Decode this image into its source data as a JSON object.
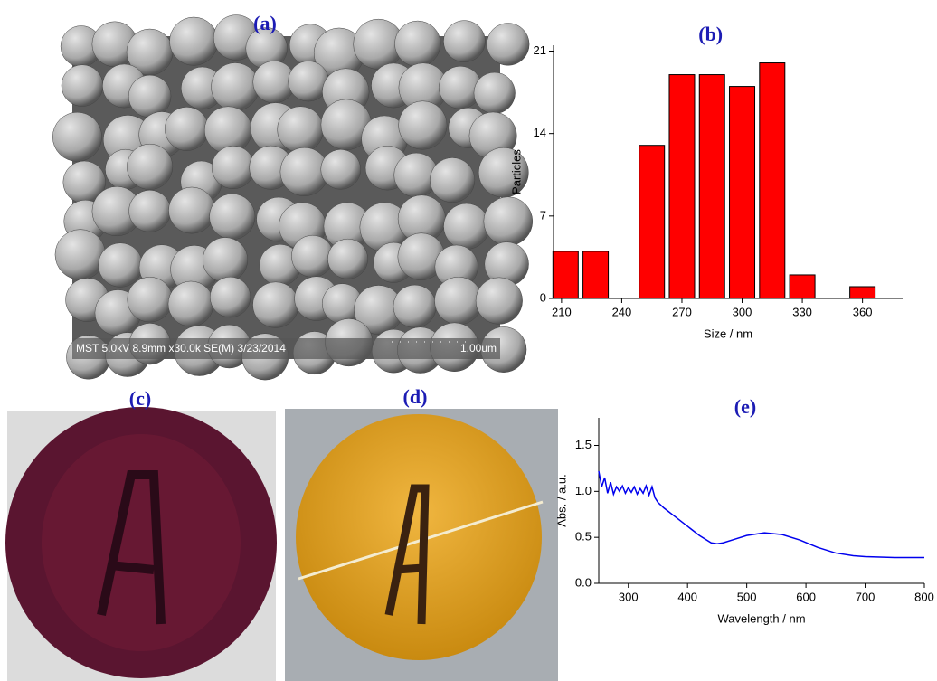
{
  "images": [
    {
      "label": "(a)",
      "caption": "MST 5.0kV 8.9mm x30.0k SE(M) 3/23/2014",
      "scale_label": "1.00um"
    },
    {
      "label": "(c)"
    },
    {
      "label": "(d)"
    }
  ],
  "chart_data": [
    {
      "type": "bar",
      "title": "(b)",
      "xlabel": "Size / nm",
      "ylabel": "Particles",
      "x": [
        212,
        227,
        255,
        270,
        285,
        300,
        315,
        330,
        360
      ],
      "values": [
        4,
        4,
        13,
        19,
        19,
        18,
        20,
        2,
        1
      ],
      "color": "#ff0000",
      "xlim": [
        206,
        380
      ],
      "xticks": [
        210,
        240,
        270,
        300,
        330,
        360
      ],
      "ylim": [
        0,
        21.5
      ],
      "yticks": [
        0,
        7,
        14,
        21
      ]
    },
    {
      "type": "line",
      "title": "(e)",
      "xlabel": "Wavelength / nm",
      "ylabel": "Abs. / a.u.",
      "color": "#0000ee",
      "x": [
        250,
        255,
        260,
        265,
        270,
        275,
        280,
        285,
        290,
        295,
        300,
        305,
        310,
        315,
        320,
        325,
        330,
        335,
        340,
        345,
        350,
        360,
        380,
        400,
        420,
        440,
        450,
        460,
        480,
        500,
        530,
        560,
        590,
        620,
        650,
        680,
        700,
        750,
        800
      ],
      "values": [
        1.22,
        1.05,
        1.15,
        0.98,
        1.1,
        0.97,
        1.05,
        1.0,
        1.06,
        0.98,
        1.04,
        0.99,
        1.05,
        0.97,
        1.03,
        0.98,
        1.06,
        0.96,
        1.05,
        0.93,
        0.88,
        0.82,
        0.72,
        0.62,
        0.52,
        0.44,
        0.43,
        0.44,
        0.48,
        0.52,
        0.55,
        0.53,
        0.47,
        0.39,
        0.33,
        0.3,
        0.29,
        0.28,
        0.28
      ],
      "xlim": [
        250,
        800
      ],
      "xticks": [
        300,
        400,
        500,
        600,
        700,
        800
      ],
      "ylim": [
        0,
        1.8
      ],
      "yticks": [
        {
          "value": 0,
          "label": "0.0"
        },
        0.5,
        {
          "value": 1,
          "label": "1.0"
        },
        1.5
      ]
    }
  ]
}
